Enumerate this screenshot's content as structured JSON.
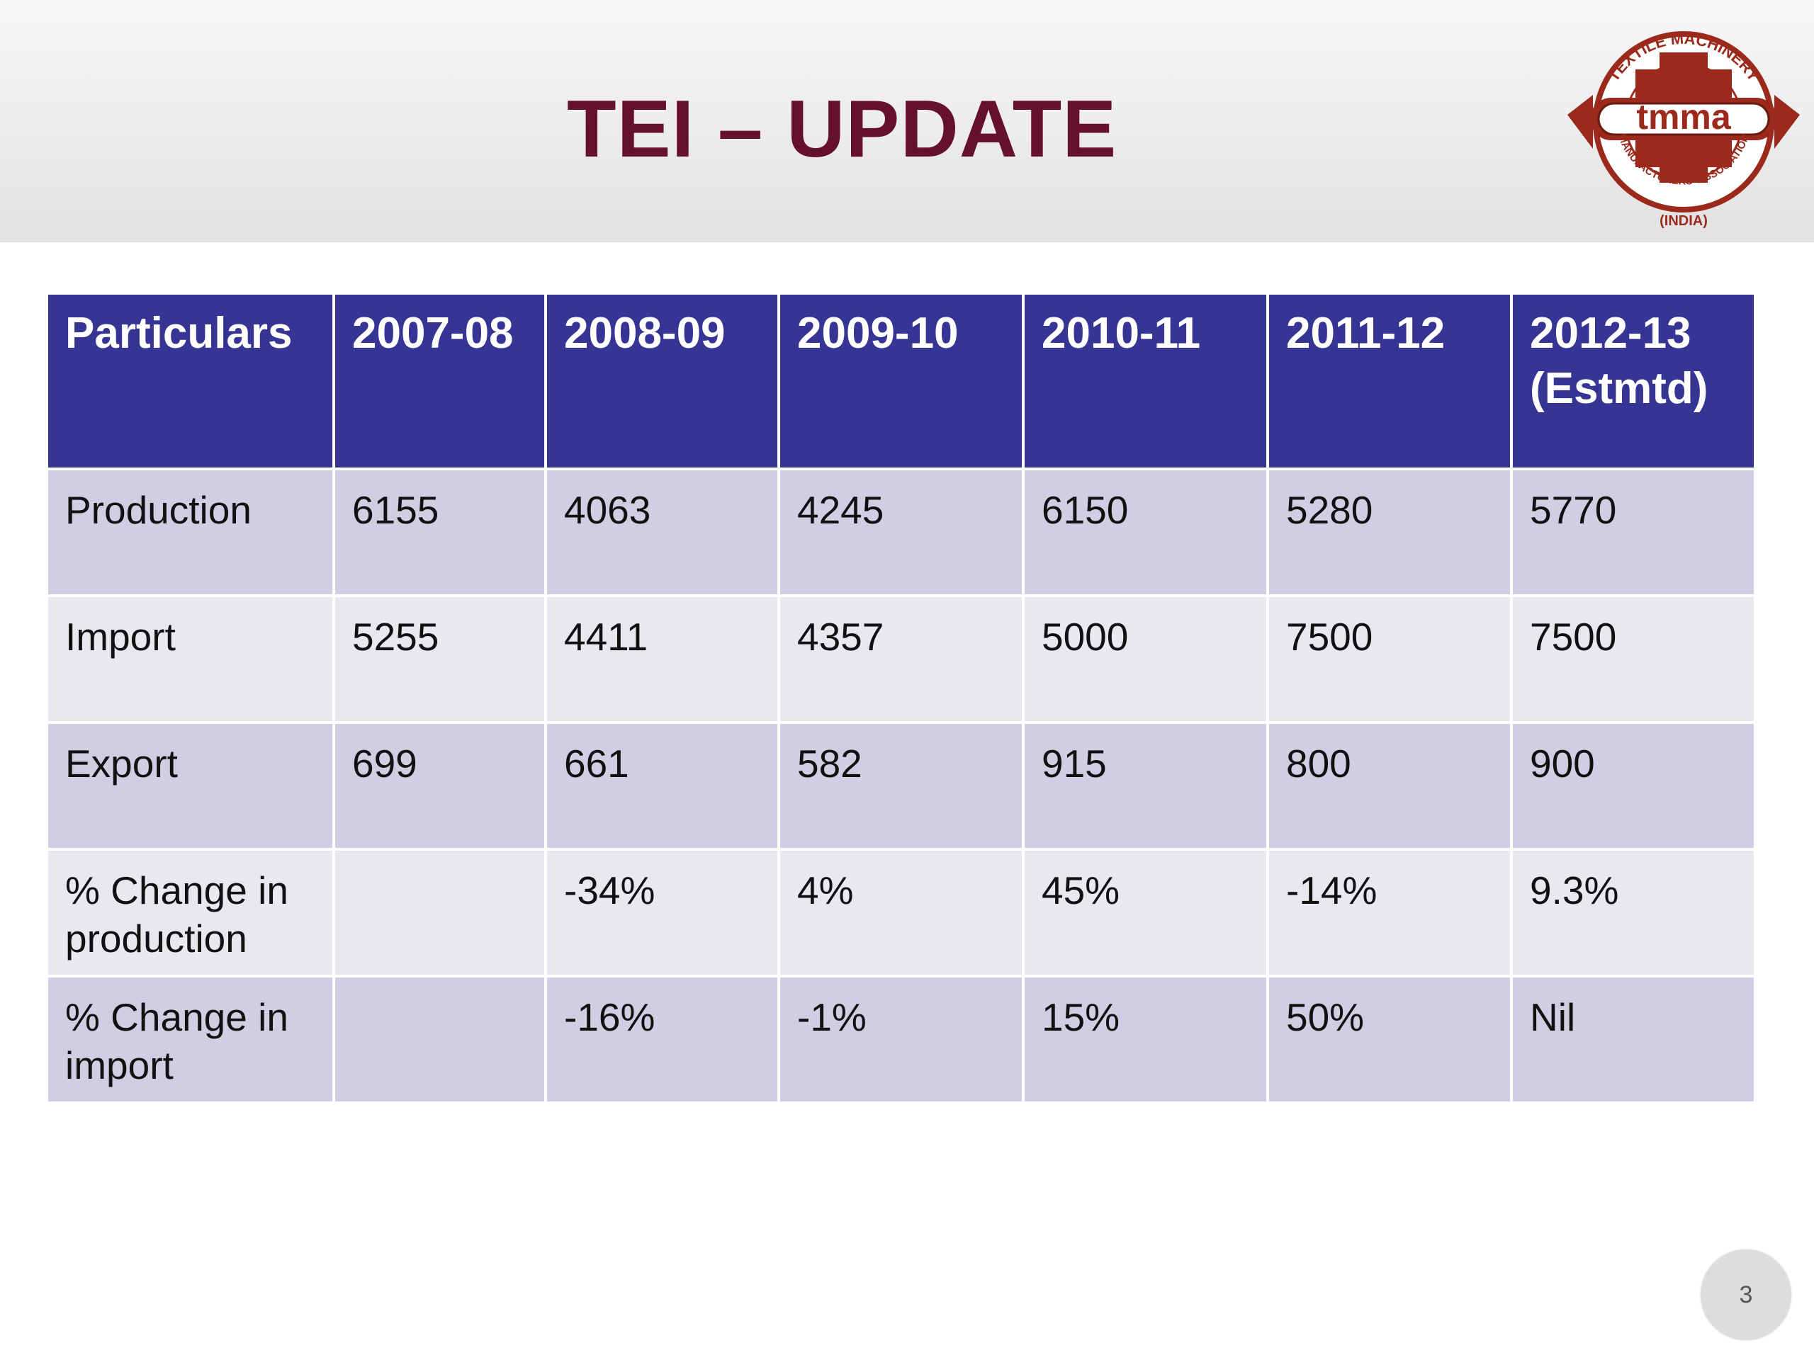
{
  "slide": {
    "title": "TEI – UPDATE",
    "page_number": "3"
  },
  "logo": {
    "arc_top_text": "TEXTILE MACHINERY",
    "center_text": "tmma",
    "arc_bottom_text": "MANUFACTURERS' ASSOCIATION",
    "country_text": "(INDIA)",
    "colors": {
      "primary": "#9c2a1c",
      "outline": "#6b1a12"
    }
  },
  "colors": {
    "title": "#65102f",
    "header_bg": "#363594",
    "row_dark": "#cfcee2",
    "row_light": "#e8e8ef"
  },
  "table": {
    "headers": [
      "Particulars",
      "2007-08",
      "2008-09",
      "2009-10",
      "2010-11",
      "2011-12",
      "2012-13 (Estmtd)"
    ],
    "rows": [
      [
        "Production",
        "6155",
        "4063",
        "4245",
        "6150",
        "5280",
        "5770"
      ],
      [
        "Import",
        "5255",
        "4411",
        "4357",
        "5000",
        "7500",
        "7500"
      ],
      [
        "Export",
        "699",
        "661",
        "582",
        "915",
        "800",
        "900"
      ],
      [
        "% Change in production",
        "",
        "-34%",
        "4%",
        "45%",
        "-14%",
        "9.3%"
      ],
      [
        "% Change in import",
        "",
        "-16%",
        "-1%",
        "15%",
        "50%",
        "Nil"
      ]
    ]
  }
}
